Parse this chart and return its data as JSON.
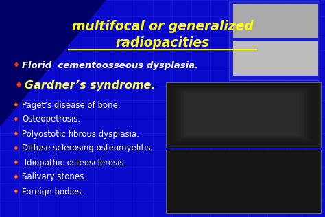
{
  "title_line1": "multifocal or generalized",
  "title_line2": "radiopacities",
  "title_color": "#FFFF00",
  "title_fontsize": 13.5,
  "bg_color": "#0A0ACC",
  "highlight_item1": "Florid  cementoosseous dysplasia.",
  "highlight_item2": "Gardner’s syndrome.",
  "highlight_color1": "#FFFFFF",
  "highlight_color2": "#FFFF44",
  "highlight_fontsize1": 9.5,
  "highlight_fontsize2": 11.5,
  "bullet_items": [
    "Paget’s disease of bone.",
    "Osteopetrosis.",
    "Polyostotic fibrous dysplasia.",
    "Diffuse sclerosing osteomyelitis.",
    " Idiopathic osteosclerosis.",
    "Salivary stones.",
    "Foreign bodies."
  ],
  "bullet_color": "#FFFFFF",
  "bullet_fontsize": 8.5,
  "bullet_symbol": "♦",
  "bullet_color_small": "#FF6600",
  "bullet_color_highlight": "#FF3300",
  "grid_color": "#4444EE",
  "dark_bg": "#000066",
  "figwidth": 4.74,
  "figheight": 3.16,
  "dpi": 100
}
